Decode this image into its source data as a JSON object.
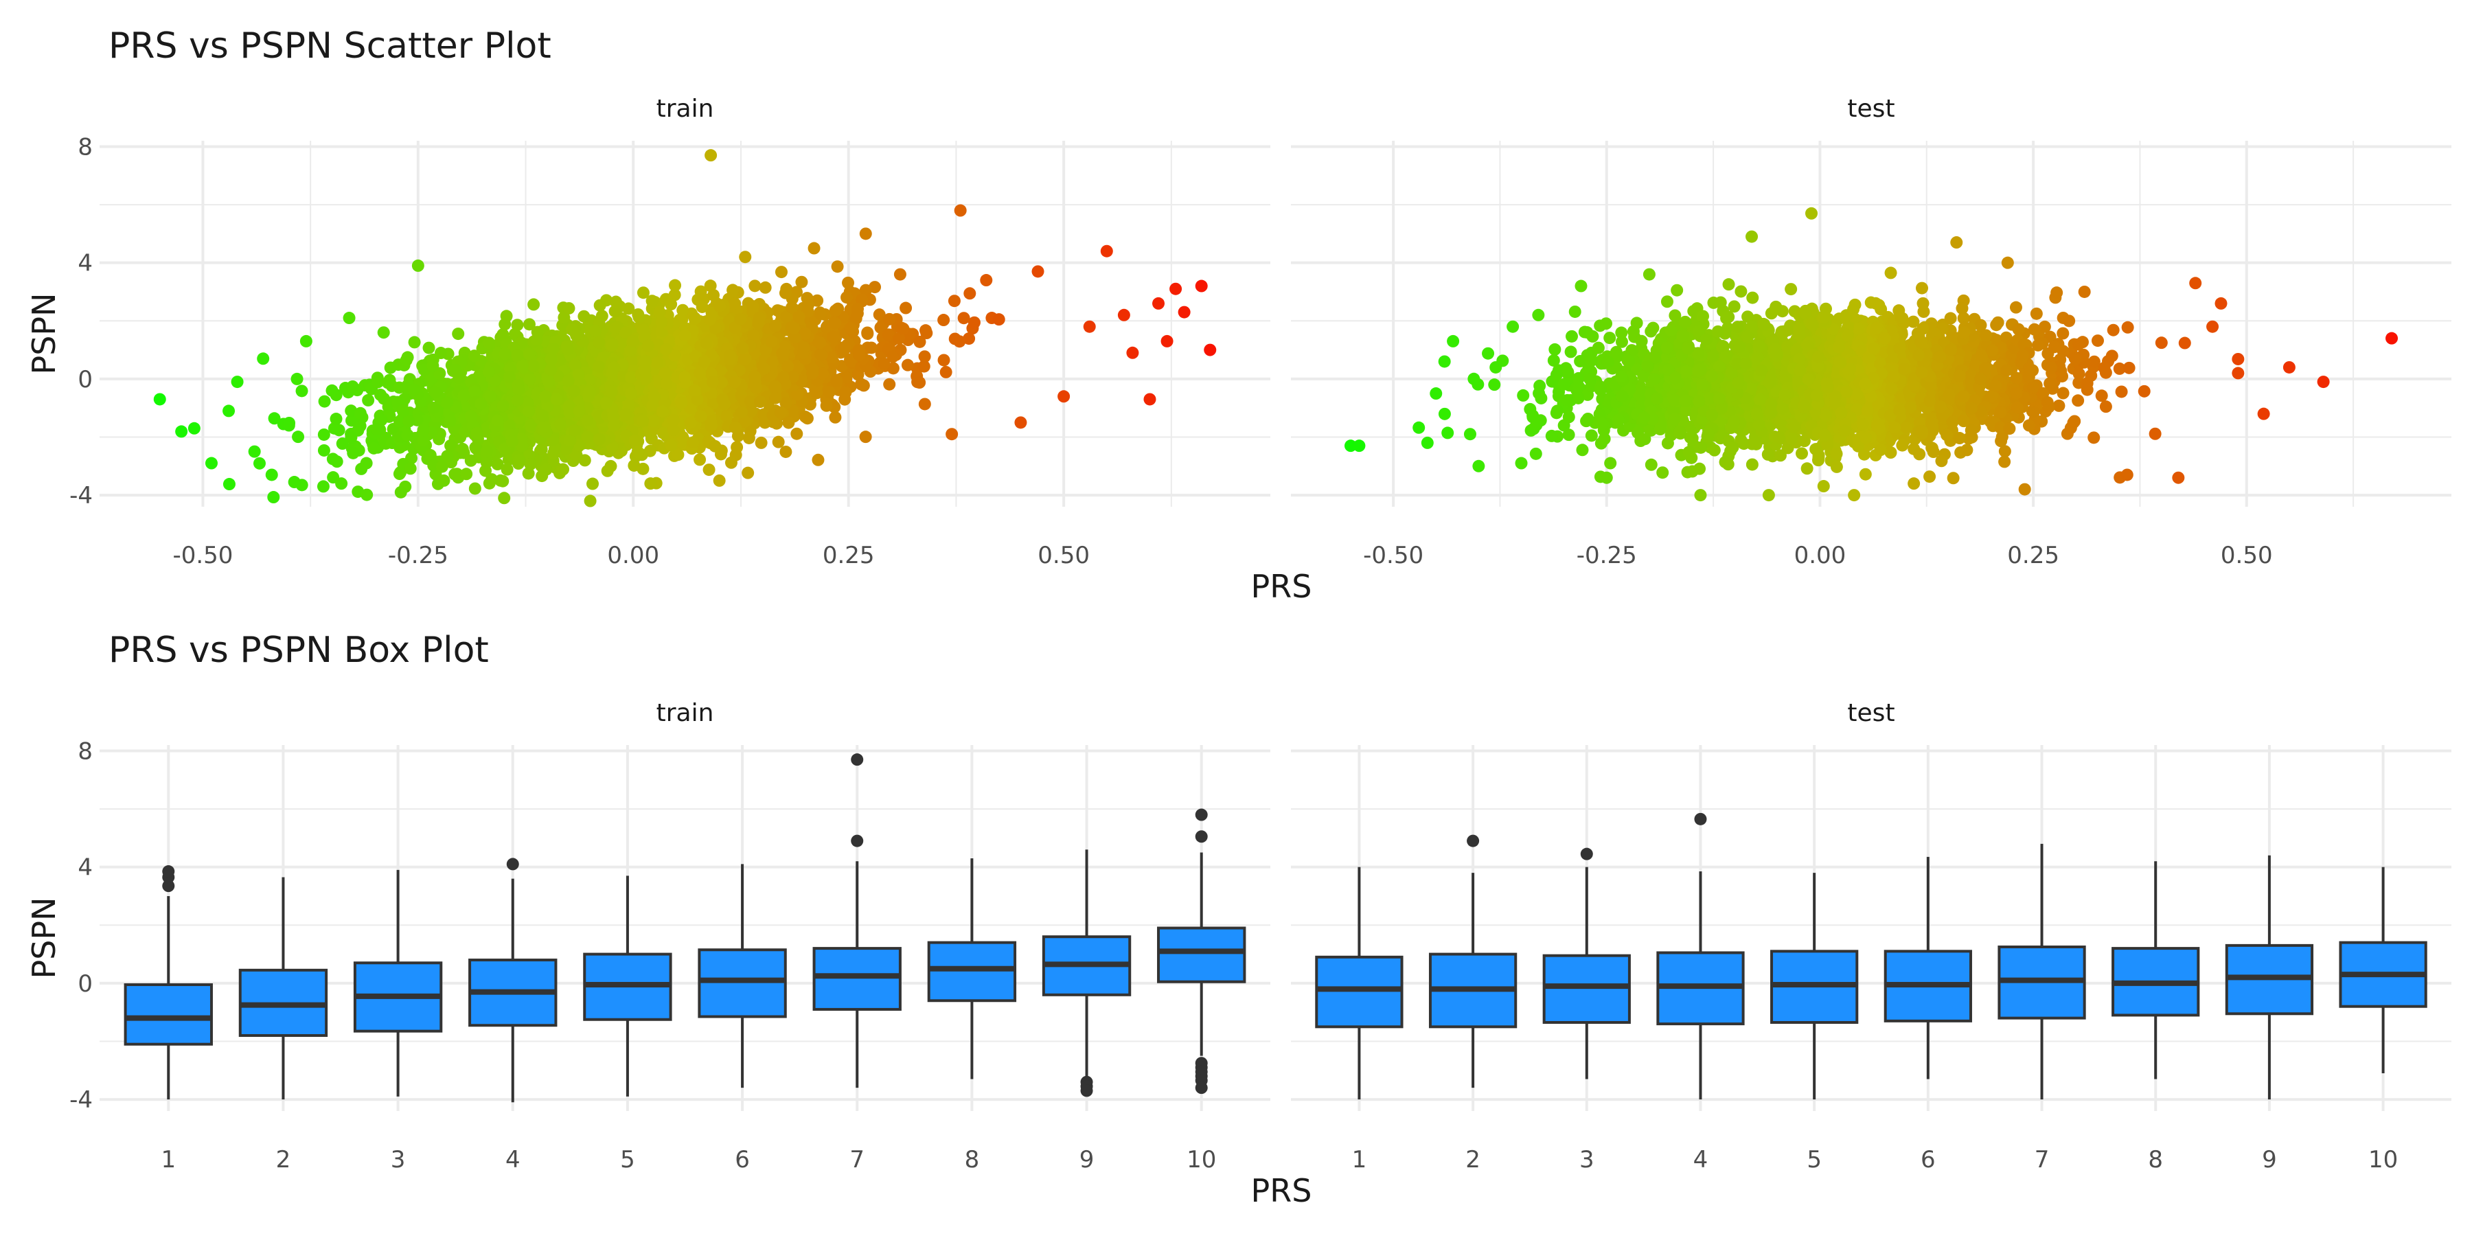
{
  "figure": {
    "scatter_title": "PRS vs PSPN Scatter Plot",
    "box_title": "PRS vs PSPN Box Plot",
    "x_title": "PRS",
    "y_title": "PSPN"
  },
  "colors": {
    "gradient_low": "#00ff00",
    "gradient_mid": "#bdb800",
    "gradient_high": "#ff0000",
    "box_fill": "#1e90ff",
    "box_line": "#333333",
    "grid": "#ebebeb"
  },
  "chart_data": [
    {
      "type": "scatter",
      "title": "PRS vs PSPN Scatter Plot",
      "xlabel": "PRS",
      "ylabel": "PSPN",
      "facets": [
        "train",
        "test"
      ],
      "xlim": [
        -0.62,
        0.74
      ],
      "ylim": [
        -4.4,
        8.2
      ],
      "xticks": [
        -0.5,
        -0.25,
        0.0,
        0.25,
        0.5
      ],
      "xtick_labels": [
        "-0.50",
        "-0.25",
        "0.00",
        "0.25",
        "0.50"
      ],
      "yticks": [
        -4,
        0,
        4,
        8
      ],
      "ytick_labels": [
        "-4",
        "0",
        "4",
        "8"
      ],
      "color_by": "PRS",
      "note": "dense point cloud; color gradient green to red along PRS",
      "series": [
        {
          "facet": "train",
          "points": [
            [
              -0.55,
              -0.7
            ],
            [
              -0.51,
              -1.7
            ],
            [
              -0.49,
              -2.9
            ],
            [
              -0.47,
              -1.1
            ],
            [
              -0.46,
              -0.1
            ],
            [
              -0.44,
              -2.5
            ],
            [
              -0.43,
              0.7
            ],
            [
              -0.42,
              -3.3
            ],
            [
              -0.4,
              -1.6
            ],
            [
              -0.38,
              1.3
            ],
            [
              -0.36,
              -3.7
            ],
            [
              -0.35,
              -0.4
            ],
            [
              -0.33,
              2.1
            ],
            [
              -0.31,
              -2.9
            ],
            [
              -0.29,
              1.6
            ],
            [
              -0.25,
              3.9
            ],
            [
              -0.27,
              -3.9
            ],
            [
              -0.22,
              -3.5
            ],
            [
              -0.15,
              -4.1
            ],
            [
              -0.05,
              -4.2
            ],
            [
              0.02,
              -3.6
            ],
            [
              0.09,
              7.7
            ],
            [
              0.1,
              -3.5
            ],
            [
              0.13,
              4.2
            ],
            [
              0.21,
              4.5
            ],
            [
              0.27,
              5.0
            ],
            [
              0.31,
              3.6
            ],
            [
              0.38,
              5.8
            ],
            [
              0.37,
              -1.9
            ],
            [
              0.41,
              3.4
            ],
            [
              0.45,
              -1.5
            ],
            [
              0.47,
              3.7
            ],
            [
              0.5,
              -0.6
            ],
            [
              0.53,
              1.8
            ],
            [
              0.55,
              4.4
            ],
            [
              0.57,
              2.2
            ],
            [
              0.58,
              0.9
            ],
            [
              0.6,
              -0.7
            ],
            [
              0.61,
              2.6
            ],
            [
              0.62,
              1.3
            ],
            [
              0.63,
              3.1
            ],
            [
              0.64,
              2.3
            ],
            [
              0.66,
              3.2
            ],
            [
              0.67,
              1.0
            ]
          ]
        },
        {
          "facet": "test",
          "points": [
            [
              -0.55,
              -2.3
            ],
            [
              -0.54,
              -2.3
            ],
            [
              -0.46,
              -2.2
            ],
            [
              -0.45,
              -0.5
            ],
            [
              -0.44,
              0.6
            ],
            [
              -0.43,
              1.3
            ],
            [
              -0.41,
              -1.9
            ],
            [
              -0.4,
              -3.0
            ],
            [
              -0.38,
              0.4
            ],
            [
              -0.36,
              1.8
            ],
            [
              -0.35,
              -2.9
            ],
            [
              -0.33,
              2.2
            ],
            [
              -0.3,
              -1.6
            ],
            [
              -0.28,
              3.2
            ],
            [
              -0.25,
              -3.4
            ],
            [
              -0.2,
              3.6
            ],
            [
              -0.14,
              -4.0
            ],
            [
              -0.08,
              4.9
            ],
            [
              -0.06,
              -4.0
            ],
            [
              -0.01,
              5.7
            ],
            [
              0.04,
              -4.0
            ],
            [
              0.11,
              -3.6
            ],
            [
              0.16,
              4.7
            ],
            [
              0.22,
              4.0
            ],
            [
              0.24,
              -3.8
            ],
            [
              0.31,
              3.0
            ],
            [
              0.36,
              -3.3
            ],
            [
              0.42,
              -3.4
            ],
            [
              0.44,
              3.3
            ],
            [
              0.46,
              1.8
            ],
            [
              0.47,
              2.6
            ],
            [
              0.49,
              0.2
            ],
            [
              0.52,
              -1.2
            ],
            [
              0.55,
              0.4
            ],
            [
              0.59,
              -0.1
            ],
            [
              0.67,
              1.4
            ]
          ]
        }
      ]
    },
    {
      "type": "box",
      "title": "PRS vs PSPN Box Plot",
      "xlabel": "PRS",
      "ylabel": "PSPN",
      "facets": [
        "train",
        "test"
      ],
      "categories": [
        "1",
        "2",
        "3",
        "4",
        "5",
        "6",
        "7",
        "8",
        "9",
        "10"
      ],
      "ylim": [
        -4.4,
        8.2
      ],
      "yticks": [
        -4,
        0,
        4,
        8
      ],
      "ytick_labels": [
        "-4",
        "0",
        "4",
        "8"
      ],
      "series": [
        {
          "facet": "train",
          "boxes": [
            {
              "category": "1",
              "lower": -4.0,
              "q1": -2.1,
              "median": -1.2,
              "q3": -0.05,
              "upper": 3.0,
              "outliers": [
                3.35,
                3.65,
                3.85
              ]
            },
            {
              "category": "2",
              "lower": -4.0,
              "q1": -1.8,
              "median": -0.75,
              "q3": 0.45,
              "upper": 3.65,
              "outliers": []
            },
            {
              "category": "3",
              "lower": -3.9,
              "q1": -1.65,
              "median": -0.45,
              "q3": 0.7,
              "upper": 3.9,
              "outliers": []
            },
            {
              "category": "4",
              "lower": -4.1,
              "q1": -1.45,
              "median": -0.3,
              "q3": 0.8,
              "upper": 3.6,
              "outliers": [
                4.1
              ]
            },
            {
              "category": "5",
              "lower": -3.9,
              "q1": -1.25,
              "median": -0.05,
              "q3": 1.0,
              "upper": 3.7,
              "outliers": []
            },
            {
              "category": "6",
              "lower": -3.6,
              "q1": -1.15,
              "median": 0.1,
              "q3": 1.15,
              "upper": 4.1,
              "outliers": []
            },
            {
              "category": "7",
              "lower": -3.6,
              "q1": -0.9,
              "median": 0.25,
              "q3": 1.2,
              "upper": 4.2,
              "outliers": [
                4.9,
                7.7
              ]
            },
            {
              "category": "8",
              "lower": -3.3,
              "q1": -0.6,
              "median": 0.5,
              "q3": 1.4,
              "upper": 4.3,
              "outliers": []
            },
            {
              "category": "9",
              "lower": -3.3,
              "q1": -0.4,
              "median": 0.65,
              "q3": 1.6,
              "upper": 4.6,
              "outliers": [
                -3.4,
                -3.55,
                -3.7
              ]
            },
            {
              "category": "10",
              "lower": -2.5,
              "q1": 0.05,
              "median": 1.1,
              "q3": 1.9,
              "upper": 4.5,
              "outliers": [
                -2.75,
                -2.9,
                -3.05,
                -3.2,
                -3.35,
                -3.6,
                5.05,
                5.8
              ]
            }
          ]
        },
        {
          "facet": "test",
          "boxes": [
            {
              "category": "1",
              "lower": -4.0,
              "q1": -1.5,
              "median": -0.2,
              "q3": 0.9,
              "upper": 4.0,
              "outliers": []
            },
            {
              "category": "2",
              "lower": -3.6,
              "q1": -1.5,
              "median": -0.2,
              "q3": 1.0,
              "upper": 3.8,
              "outliers": [
                4.9
              ]
            },
            {
              "category": "3",
              "lower": -3.3,
              "q1": -1.35,
              "median": -0.1,
              "q3": 0.95,
              "upper": 4.0,
              "outliers": [
                4.45
              ]
            },
            {
              "category": "4",
              "lower": -4.0,
              "q1": -1.4,
              "median": -0.1,
              "q3": 1.05,
              "upper": 3.85,
              "outliers": [
                5.65
              ]
            },
            {
              "category": "5",
              "lower": -4.0,
              "q1": -1.35,
              "median": -0.05,
              "q3": 1.1,
              "upper": 3.8,
              "outliers": []
            },
            {
              "category": "6",
              "lower": -3.3,
              "q1": -1.3,
              "median": -0.05,
              "q3": 1.1,
              "upper": 4.35,
              "outliers": []
            },
            {
              "category": "7",
              "lower": -4.0,
              "q1": -1.2,
              "median": 0.1,
              "q3": 1.25,
              "upper": 4.8,
              "outliers": []
            },
            {
              "category": "8",
              "lower": -3.3,
              "q1": -1.1,
              "median": 0.0,
              "q3": 1.2,
              "upper": 4.2,
              "outliers": []
            },
            {
              "category": "9",
              "lower": -4.0,
              "q1": -1.05,
              "median": 0.2,
              "q3": 1.3,
              "upper": 4.4,
              "outliers": []
            },
            {
              "category": "10",
              "lower": -3.1,
              "q1": -0.8,
              "median": 0.3,
              "q3": 1.4,
              "upper": 4.0,
              "outliers": []
            }
          ]
        }
      ]
    }
  ]
}
